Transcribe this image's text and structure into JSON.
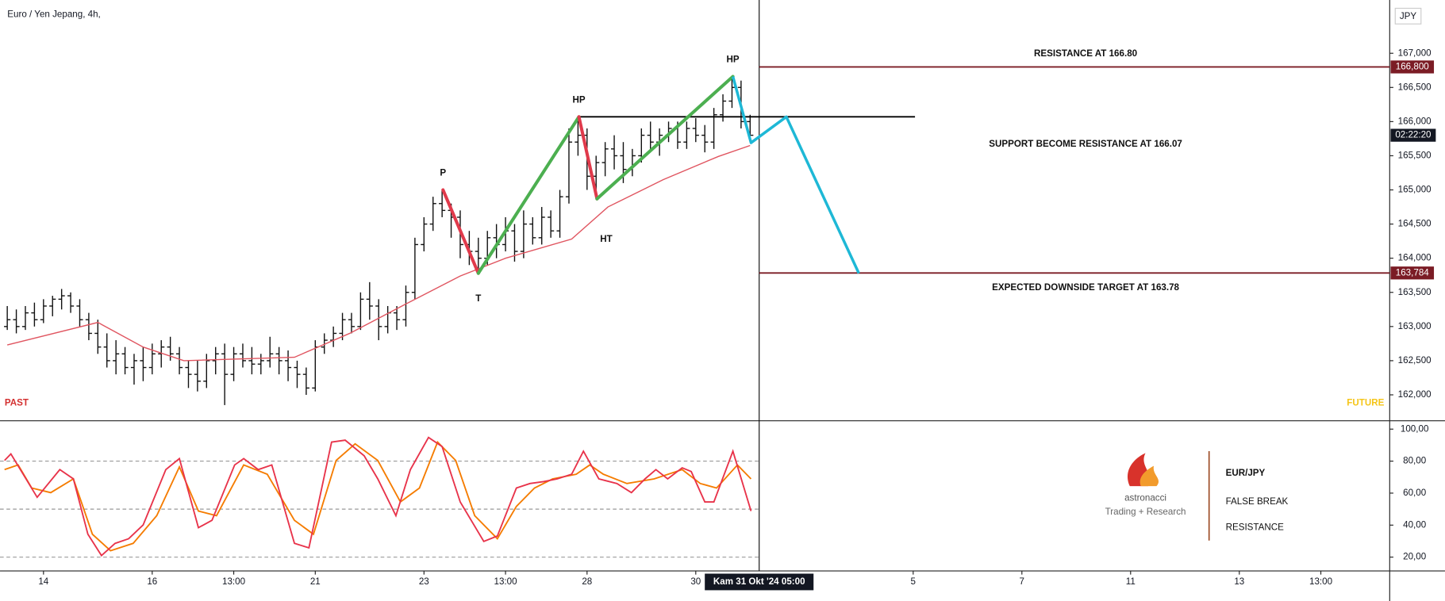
{
  "chart_data": [
    {
      "type": "ohlc",
      "title": "Euro / Yen Jepang, 4h,",
      "currency": "JPY",
      "ohlc": [
        [
          163.0,
          163.3,
          162.95,
          163.1
        ],
        [
          163.1,
          163.25,
          162.9,
          163.0
        ],
        [
          163.0,
          163.3,
          162.95,
          163.2
        ],
        [
          163.2,
          163.35,
          163.0,
          163.1
        ],
        [
          163.1,
          163.4,
          163.05,
          163.3
        ],
        [
          163.3,
          163.45,
          163.15,
          163.4
        ],
        [
          163.4,
          163.55,
          163.25,
          163.45
        ],
        [
          163.45,
          163.5,
          163.2,
          163.3
        ],
        [
          163.3,
          163.4,
          163.0,
          163.1
        ],
        [
          163.1,
          163.2,
          162.8,
          162.9
        ],
        [
          162.9,
          163.1,
          162.6,
          162.7
        ],
        [
          162.7,
          162.9,
          162.4,
          162.5
        ],
        [
          162.5,
          162.8,
          162.3,
          162.6
        ],
        [
          162.6,
          162.7,
          162.3,
          162.4
        ],
        [
          162.4,
          162.6,
          162.15,
          162.5
        ],
        [
          162.5,
          162.7,
          162.2,
          162.4
        ],
        [
          162.4,
          162.75,
          162.3,
          162.6
        ],
        [
          162.6,
          162.8,
          162.4,
          162.7
        ],
        [
          162.7,
          162.85,
          162.5,
          162.6
        ],
        [
          162.6,
          162.7,
          162.3,
          162.4
        ],
        [
          162.4,
          162.5,
          162.1,
          162.3
        ],
        [
          162.3,
          162.5,
          162.05,
          162.2
        ],
        [
          162.2,
          162.6,
          162.1,
          162.5
        ],
        [
          162.5,
          162.7,
          162.3,
          162.6
        ],
        [
          162.6,
          162.75,
          161.85,
          162.3
        ],
        [
          162.3,
          162.7,
          162.2,
          162.6
        ],
        [
          162.6,
          162.75,
          162.4,
          162.5
        ],
        [
          162.5,
          162.7,
          162.3,
          162.45
        ],
        [
          162.45,
          162.6,
          162.3,
          162.5
        ],
        [
          162.5,
          162.85,
          162.4,
          162.6
        ],
        [
          162.6,
          162.7,
          162.3,
          162.5
        ],
        [
          162.5,
          162.65,
          162.2,
          162.4
        ],
        [
          162.4,
          162.5,
          162.1,
          162.3
        ],
        [
          162.3,
          162.4,
          162.0,
          162.1
        ],
        [
          162.1,
          162.8,
          162.05,
          162.7
        ],
        [
          162.7,
          162.9,
          162.6,
          162.8
        ],
        [
          162.8,
          163.0,
          162.7,
          162.9
        ],
        [
          162.9,
          163.2,
          162.8,
          163.1
        ],
        [
          163.1,
          163.2,
          162.9,
          163.0
        ],
        [
          163.0,
          163.5,
          162.95,
          163.4
        ],
        [
          163.4,
          163.65,
          163.1,
          163.3
        ],
        [
          163.3,
          163.4,
          162.8,
          163.0
        ],
        [
          163.0,
          163.3,
          162.9,
          163.2
        ],
        [
          163.2,
          163.3,
          162.95,
          163.1
        ],
        [
          163.1,
          163.6,
          163.0,
          163.5
        ],
        [
          163.5,
          164.3,
          163.4,
          164.2
        ],
        [
          164.2,
          164.6,
          164.1,
          164.5
        ],
        [
          164.5,
          164.9,
          164.4,
          164.8
        ],
        [
          164.8,
          165.0,
          164.6,
          164.7
        ],
        [
          164.7,
          164.8,
          164.3,
          164.6
        ],
        [
          164.6,
          164.7,
          164.0,
          164.2
        ],
        [
          164.2,
          164.4,
          163.9,
          164.1
        ],
        [
          164.1,
          164.3,
          163.8,
          164.0
        ],
        [
          164.0,
          164.4,
          163.9,
          164.3
        ],
        [
          164.3,
          164.5,
          164.0,
          164.2
        ],
        [
          164.2,
          164.6,
          164.1,
          164.4
        ],
        [
          164.4,
          164.5,
          163.95,
          164.1
        ],
        [
          164.1,
          164.7,
          164.0,
          164.5
        ],
        [
          164.5,
          164.6,
          164.2,
          164.3
        ],
        [
          164.3,
          164.75,
          164.2,
          164.6
        ],
        [
          164.6,
          164.7,
          164.3,
          164.4
        ],
        [
          164.4,
          165.0,
          164.3,
          164.9
        ],
        [
          164.9,
          165.9,
          164.8,
          165.7
        ],
        [
          165.7,
          166.07,
          165.5,
          165.8
        ],
        [
          165.8,
          165.9,
          165.0,
          165.2
        ],
        [
          165.2,
          165.5,
          164.9,
          165.4
        ],
        [
          165.4,
          165.7,
          165.2,
          165.6
        ],
        [
          165.6,
          165.8,
          165.3,
          165.5
        ],
        [
          165.5,
          165.7,
          165.1,
          165.3
        ],
        [
          165.3,
          165.6,
          165.2,
          165.5
        ],
        [
          165.5,
          165.9,
          165.4,
          165.8
        ],
        [
          165.8,
          166.0,
          165.6,
          165.7
        ],
        [
          165.7,
          165.9,
          165.5,
          165.8
        ],
        [
          165.8,
          166.0,
          165.7,
          165.9
        ],
        [
          165.9,
          166.0,
          165.6,
          165.7
        ],
        [
          165.7,
          166.0,
          165.6,
          165.9
        ],
        [
          165.9,
          166.05,
          165.7,
          165.8
        ],
        [
          165.8,
          165.95,
          165.55,
          165.7
        ],
        [
          165.7,
          166.2,
          165.6,
          166.1
        ],
        [
          166.1,
          166.4,
          166.0,
          166.3
        ],
        [
          166.3,
          166.66,
          166.2,
          166.5
        ],
        [
          166.5,
          166.6,
          165.9,
          166.0
        ],
        [
          166.0,
          166.1,
          165.7,
          165.8
        ]
      ],
      "ma": {
        "color": "#e05560",
        "x": [
          0,
          10,
          15,
          19.5,
          31.7,
          37.8,
          44,
          50,
          55,
          62.3,
          66.3,
          72.4,
          78.5,
          82
        ],
        "values": [
          162.73,
          163.06,
          162.7,
          162.5,
          162.55,
          162.9,
          163.33,
          163.74,
          164.0,
          164.28,
          164.75,
          165.15,
          165.49,
          165.65
        ]
      },
      "xlim": [
        -0.8,
        152.6
      ],
      "xticks": [
        {
          "value": 4,
          "label": "14"
        },
        {
          "value": 16,
          "label": "16"
        },
        {
          "value": 25,
          "label": "13:00"
        },
        {
          "value": 34,
          "label": "21"
        },
        {
          "value": 46,
          "label": "23"
        },
        {
          "value": 55,
          "label": "13:00"
        },
        {
          "value": 64,
          "label": "28"
        },
        {
          "value": 76,
          "label": "30"
        },
        {
          "value": 100,
          "label": "5"
        },
        {
          "value": 112,
          "label": "7"
        },
        {
          "value": 124,
          "label": "11"
        },
        {
          "value": 136,
          "label": "13"
        },
        {
          "value": 145,
          "label": "13:00"
        }
      ],
      "current_bar": {
        "value": 83,
        "label": "Kam 31 Okt '24  05:00"
      },
      "countdown": "02:22:20",
      "ylim": [
        161.62,
        167.78
      ],
      "yticks": [
        {
          "value": 167,
          "label": "167,000"
        },
        {
          "value": 166.5,
          "label": "166,500"
        },
        {
          "value": 166,
          "label": "166,000"
        },
        {
          "value": 165.5,
          "label": "165,500"
        },
        {
          "value": 165,
          "label": "165,000"
        },
        {
          "value": 164.5,
          "label": "164,500"
        },
        {
          "value": 164,
          "label": "164,000"
        },
        {
          "value": 163.5,
          "label": "163,500"
        },
        {
          "value": 163,
          "label": "163,000"
        },
        {
          "value": 162.5,
          "label": "162,500"
        },
        {
          "value": 162,
          "label": "162,000"
        }
      ],
      "levels": [
        {
          "value": 166.8,
          "label": "166,800",
          "text": "RESISTANCE AT 166.80",
          "color": "#7b1c25",
          "x": [
            83
          ]
        },
        {
          "value": 166.07,
          "text": "SUPPORT BECOME RESISTANCE AT 166.07",
          "color": "#000000",
          "x": [
            63.1,
            100.2
          ]
        },
        {
          "value": 163.784,
          "label": "163,784",
          "text": "EXPECTED DOWNSIDE TARGET AT 163.78",
          "color": "#7b1c25",
          "x": [
            83
          ]
        }
      ],
      "zigzag": {
        "x": [
          48.1,
          52,
          63.1,
          65.1,
          80.1
        ],
        "values": [
          165.0,
          163.78,
          166.07,
          164.87,
          166.66
        ],
        "labels": [
          "P",
          "T",
          "HP",
          "HT",
          "HP"
        ],
        "colors": [
          "#e03a4b",
          "#4caf50",
          "#e03a4b",
          "#4caf50"
        ]
      },
      "projection": {
        "color": "#1eb8d6",
        "x": [
          80.1,
          82.1,
          86,
          94
        ],
        "values": [
          166.66,
          165.69,
          166.07,
          163.78
        ]
      },
      "past_label": "PAST",
      "future_label": "FUTURE"
    },
    {
      "type": "line",
      "series": [
        {
          "color": "#f57c00",
          "x": [
            -0.3,
            1.2,
            2.7,
            4.8,
            7.3,
            9.4,
            11.4,
            13.9,
            16.5,
            19.0,
            21.1,
            23.1,
            26.1,
            28.7,
            31.7,
            33.8,
            36.3,
            38.4,
            40.9,
            43.4,
            45.5,
            47.5,
            49.5,
            51.6,
            54.1,
            56.2,
            58.2,
            60.2,
            62.8,
            64.3,
            65.8,
            68.4,
            71.4,
            74.5,
            76.5,
            78.3,
            80.6,
            82.1
          ],
          "values": [
            74.7,
            77.6,
            63.2,
            60.3,
            68.9,
            34.3,
            24.0,
            28.6,
            45.9,
            76.4,
            48.8,
            45.9,
            77.6,
            71.8,
            43.0,
            34.3,
            80.4,
            90.8,
            80.4,
            54.5,
            63.2,
            91.9,
            80.4,
            45.9,
            31.5,
            51.7,
            63.2,
            68.9,
            71.8,
            77.6,
            71.8,
            66.0,
            68.9,
            74.7,
            66.0,
            63.2,
            77.6,
            68.9
          ]
        },
        {
          "color": "#e8334a",
          "x": [
            -0.3,
            0.4,
            3.3,
            5.8,
            7.3,
            8.9,
            10.4,
            11.9,
            13.4,
            15.0,
            17.5,
            19.0,
            21.1,
            22.6,
            25.1,
            26.1,
            27.7,
            29.2,
            31.7,
            33.3,
            35.8,
            37.3,
            39.4,
            40.9,
            42.9,
            44.5,
            46.5,
            48.0,
            50.0,
            52.6,
            54.1,
            56.2,
            57.7,
            59.2,
            60.7,
            62.3,
            63.6,
            65.3,
            67.3,
            68.9,
            70.4,
            71.6,
            72.9,
            74.5,
            75.5,
            77.0,
            78.0,
            80.1,
            82.1
          ],
          "values": [
            80.4,
            84.5,
            57.4,
            74.7,
            68.9,
            34.3,
            21.0,
            28.6,
            31.5,
            40.1,
            74.7,
            81.6,
            38.4,
            43.0,
            77.6,
            81.6,
            74.7,
            77.6,
            28.6,
            25.8,
            91.9,
            93.1,
            83.3,
            68.9,
            45.9,
            74.7,
            94.8,
            89.1,
            54.5,
            29.8,
            33.2,
            63.2,
            66.0,
            67.2,
            68.9,
            71.8,
            86.2,
            68.9,
            66.0,
            60.3,
            68.9,
            74.7,
            68.9,
            75.8,
            73.5,
            54.5,
            54.5,
            86.2,
            48.8
          ]
        }
      ],
      "ylim": [
        11.4,
        105.2
      ],
      "yticks": [
        {
          "value": 100,
          "label": "100,00"
        },
        {
          "value": 80,
          "label": "80,00"
        },
        {
          "value": 60,
          "label": "60,00"
        },
        {
          "value": 40,
          "label": "40,00"
        },
        {
          "value": 20,
          "label": "20,00"
        }
      ],
      "dashed_levels": [
        80,
        50,
        20
      ]
    }
  ],
  "branding": {
    "logo": "astronacci",
    "tagline": "Trading + Research",
    "pair": "EUR/JPY",
    "subtitle": [
      "FALSE BREAK",
      "RESISTANCE"
    ]
  }
}
